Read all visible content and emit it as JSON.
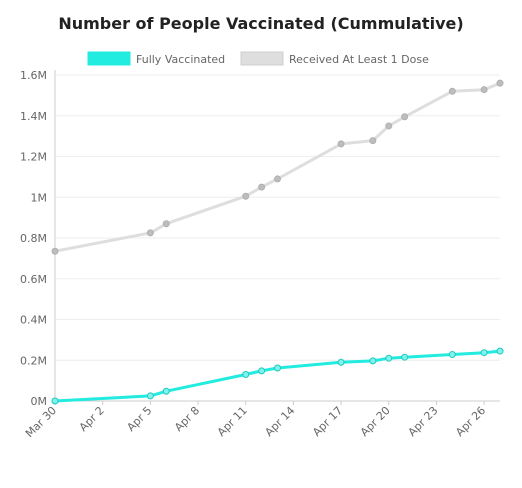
{
  "chart_data": {
    "type": "line",
    "title": "Number of People Vaccinated (Cummulative)",
    "xlabel": "",
    "ylabel": "",
    "x_ticks": [
      "Mar 30",
      "Apr 2",
      "Apr 5",
      "Apr 8",
      "Apr 11",
      "Apr 14",
      "Apr 17",
      "Apr 20",
      "Apr 23",
      "Apr 26"
    ],
    "y_ticks": [
      "0M",
      "0.2M",
      "0.4M",
      "0.6M",
      "0.8M",
      "1M",
      "1.2M",
      "1.4M",
      "1.6M"
    ],
    "ylim": [
      0,
      1600000
    ],
    "x_start": "Mar 30",
    "grid": true,
    "legend_position": "top",
    "series": [
      {
        "name": "Fully Vaccinated",
        "color": "#22ebe0",
        "points": [
          {
            "x": "Mar 30",
            "y": 0
          },
          {
            "x": "Apr 5",
            "y": 25000
          },
          {
            "x": "Apr 6",
            "y": 48000
          },
          {
            "x": "Apr 11",
            "y": 130000
          },
          {
            "x": "Apr 12",
            "y": 148000
          },
          {
            "x": "Apr 13",
            "y": 162000
          },
          {
            "x": "Apr 17",
            "y": 190000
          },
          {
            "x": "Apr 19",
            "y": 197000
          },
          {
            "x": "Apr 20",
            "y": 210000
          },
          {
            "x": "Apr 21",
            "y": 215000
          },
          {
            "x": "Apr 24",
            "y": 228000
          },
          {
            "x": "Apr 26",
            "y": 237000
          },
          {
            "x": "Apr 27",
            "y": 245000
          }
        ]
      },
      {
        "name": "Received At Least 1 Dose",
        "color": "#dedede",
        "points": [
          {
            "x": "Mar 30",
            "y": 735000
          },
          {
            "x": "Apr 5",
            "y": 825000
          },
          {
            "x": "Apr 6",
            "y": 870000
          },
          {
            "x": "Apr 11",
            "y": 1005000
          },
          {
            "x": "Apr 12",
            "y": 1050000
          },
          {
            "x": "Apr 13",
            "y": 1090000
          },
          {
            "x": "Apr 17",
            "y": 1262000
          },
          {
            "x": "Apr 19",
            "y": 1278000
          },
          {
            "x": "Apr 20",
            "y": 1350000
          },
          {
            "x": "Apr 21",
            "y": 1395000
          },
          {
            "x": "Apr 24",
            "y": 1520000
          },
          {
            "x": "Apr 26",
            "y": 1528000
          },
          {
            "x": "Apr 27",
            "y": 1560000
          }
        ]
      }
    ]
  }
}
